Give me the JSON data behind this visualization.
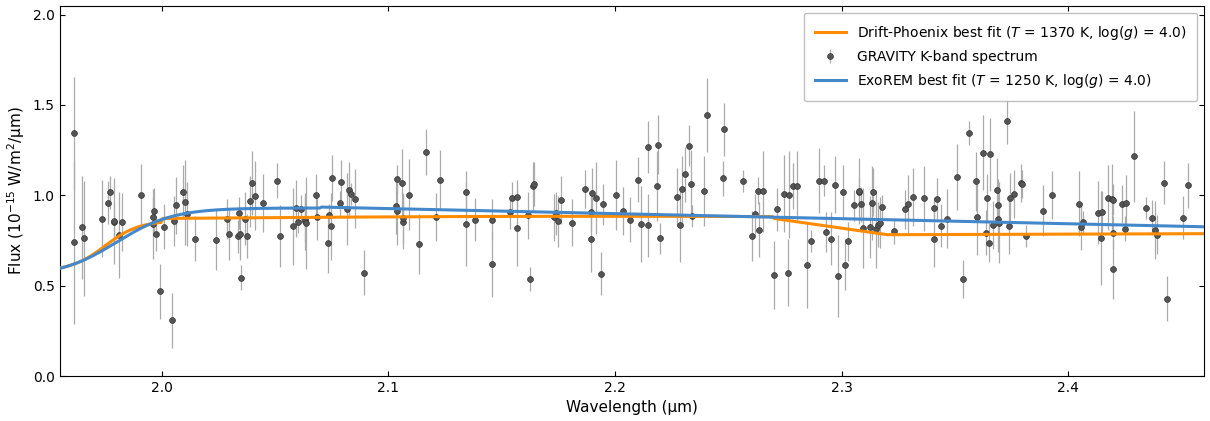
{
  "xlim": [
    1.955,
    2.46
  ],
  "ylim": [
    0.0,
    2.05
  ],
  "xlabel": "Wavelength (μm)",
  "ylabel": "Flux (10$^{-15}$ W/m$^2$/μm)",
  "exorem_label": "ExoREM best fit ($T$ = 1250 K, log($g$) = 4.0)",
  "drift_label": "Drift-Phoenix best fit ($T$ = 1370 K, log($g$) = 4.0)",
  "data_label": "GRAVITY K-band spectrum",
  "exorem_color": "#4488cc",
  "drift_color": "#ff8c00",
  "data_color": "#555555",
  "xticks": [
    2.0,
    2.1,
    2.2,
    2.3,
    2.4
  ],
  "yticks": [
    0.0,
    0.5,
    1.0,
    1.5,
    2.0
  ],
  "figsize": [
    12.1,
    4.21
  ],
  "dpi": 100
}
